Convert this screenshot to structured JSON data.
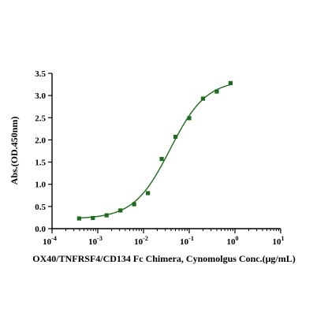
{
  "chart_data": {
    "type": "scatter",
    "xscale": "log",
    "xlabel": "OX40/TNFRSF4/CD134 Fc Chimera, Cynomolgus Conc.(μg/mL)",
    "ylabel": "Abs.(OD.450nm)",
    "xlim": [
      0.0001,
      10
    ],
    "ylim": [
      0,
      3.5
    ],
    "x_ticks": [
      {
        "base": "10",
        "exp": "-4"
      },
      {
        "base": "10",
        "exp": "-3"
      },
      {
        "base": "10",
        "exp": "-2"
      },
      {
        "base": "10",
        "exp": "-1"
      },
      {
        "base": "10",
        "exp": "0"
      },
      {
        "base": "10",
        "exp": "1"
      }
    ],
    "y_ticks": [
      "0.0",
      "0.5",
      "1.0",
      "1.5",
      "2.0",
      "2.5",
      "3.0",
      "3.5"
    ],
    "series": [
      {
        "x": [
          0.000391,
          0.000781,
          0.00156,
          0.00313,
          0.00625,
          0.0125,
          0.025,
          0.05,
          0.1,
          0.2,
          0.4,
          0.8
        ],
        "y": [
          0.23,
          0.24,
          0.3,
          0.41,
          0.55,
          0.8,
          1.57,
          2.07,
          2.49,
          2.93,
          3.09,
          3.28
        ]
      }
    ],
    "fit": {
      "bottom": 0.22,
      "top": 3.35,
      "ec50": 0.038,
      "hill": 1.1
    },
    "color": "#1e6b1e",
    "grid": false,
    "legend": "none"
  }
}
